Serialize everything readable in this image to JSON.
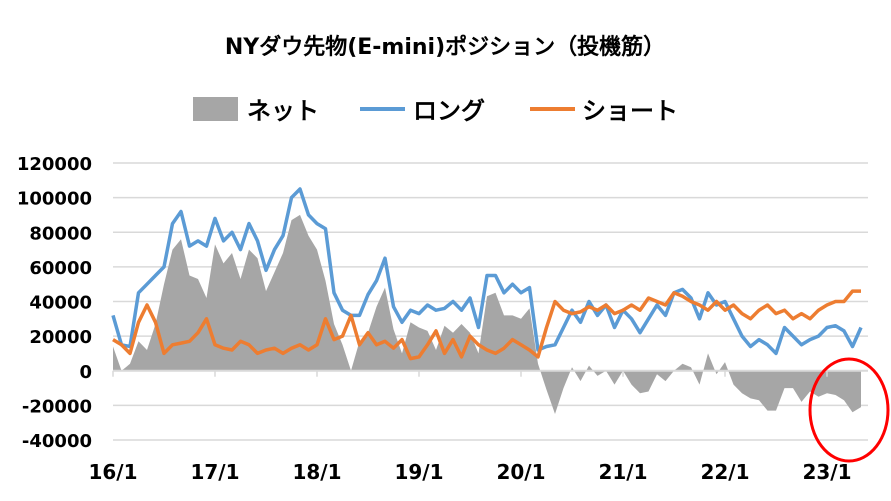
{
  "chart_data": {
    "type": "line",
    "title": "NYダウ先物(E-mini)ポジション（投機筋）",
    "xlabel": "",
    "ylabel": "",
    "ylim": [
      -40000,
      120000
    ],
    "yticks": [
      120000,
      100000,
      80000,
      60000,
      40000,
      20000,
      0,
      -20000,
      -40000
    ],
    "ytick_labels": [
      "120000",
      "100000",
      "80000",
      "60000",
      "40000",
      "20000",
      "0",
      "-20000",
      "-40000"
    ],
    "xtick_labels": [
      "16/1",
      "17/1",
      "18/1",
      "19/1",
      "20/1",
      "21/1",
      "22/1",
      "23/1"
    ],
    "x_start": "2016-01",
    "x_unit": "month",
    "grid": true,
    "legend_position": "top",
    "legend": [
      "ネット",
      "ロング",
      "ショート"
    ],
    "colors": {
      "net": "#a6a6a6",
      "long": "#5b9bd5",
      "short": "#ed7d31",
      "annotation": "#ff0000",
      "grid": "#d9d9d9"
    },
    "annotation": "red-ellipse-around-2023",
    "series": [
      {
        "name": "ネット",
        "kind": "area",
        "values": [
          14000,
          0,
          4000,
          17000,
          12000,
          27000,
          50000,
          70000,
          76000,
          55000,
          53000,
          42000,
          73000,
          62000,
          68000,
          53000,
          70000,
          65000,
          46000,
          57000,
          68000,
          87000,
          90000,
          78000,
          70000,
          52000,
          27000,
          15000,
          0,
          17000,
          22000,
          37000,
          48000,
          24000,
          10000,
          28000,
          25000,
          23000,
          12000,
          26000,
          22000,
          27000,
          22000,
          10000,
          43000,
          45000,
          32000,
          32000,
          30000,
          36000,
          4000,
          -11000,
          -25000,
          -10000,
          2000,
          -6000,
          3000,
          -3000,
          0,
          -8000,
          0,
          -8000,
          -13000,
          -12000,
          -2000,
          -6000,
          0,
          4000,
          2000,
          -8000,
          10000,
          -2000,
          5000,
          -8000,
          -13000,
          -16000,
          -17000,
          -23000,
          -23000,
          -10000,
          -10000,
          -18000,
          -12000,
          -15000,
          -13000,
          -14000,
          -17000,
          -24000,
          -21000
        ]
      },
      {
        "name": "ロング",
        "kind": "line",
        "values": [
          32000,
          15000,
          14000,
          45000,
          50000,
          55000,
          60000,
          85000,
          92000,
          72000,
          75000,
          72000,
          88000,
          75000,
          80000,
          70000,
          85000,
          75000,
          58000,
          70000,
          78000,
          100000,
          105000,
          90000,
          85000,
          82000,
          45000,
          35000,
          32000,
          32000,
          44000,
          52000,
          65000,
          37000,
          28000,
          35000,
          33000,
          38000,
          35000,
          36000,
          40000,
          35000,
          42000,
          25000,
          55000,
          55000,
          45000,
          50000,
          45000,
          48000,
          12000,
          14000,
          15000,
          25000,
          35000,
          28000,
          40000,
          32000,
          38000,
          25000,
          35000,
          30000,
          22000,
          30000,
          38000,
          32000,
          45000,
          47000,
          42000,
          30000,
          45000,
          38000,
          40000,
          30000,
          20000,
          14000,
          18000,
          15000,
          10000,
          25000,
          20000,
          15000,
          18000,
          20000,
          25000,
          26000,
          23000,
          14000,
          25000
        ]
      },
      {
        "name": "ショート",
        "kind": "line",
        "values": [
          18000,
          15000,
          10000,
          28000,
          38000,
          28000,
          10000,
          15000,
          16000,
          17000,
          22000,
          30000,
          15000,
          13000,
          12000,
          17000,
          15000,
          10000,
          12000,
          13000,
          10000,
          13000,
          15000,
          12000,
          15000,
          30000,
          18000,
          20000,
          32000,
          15000,
          22000,
          15000,
          17000,
          13000,
          18000,
          7000,
          8000,
          15000,
          23000,
          10000,
          18000,
          8000,
          20000,
          15000,
          12000,
          10000,
          13000,
          18000,
          15000,
          12000,
          8000,
          25000,
          40000,
          35000,
          33000,
          34000,
          37000,
          35000,
          38000,
          33000,
          35000,
          38000,
          35000,
          42000,
          40000,
          38000,
          45000,
          43000,
          40000,
          38000,
          35000,
          40000,
          35000,
          38000,
          33000,
          30000,
          35000,
          38000,
          33000,
          35000,
          30000,
          33000,
          30000,
          35000,
          38000,
          40000,
          40000,
          46000,
          46000
        ]
      }
    ]
  }
}
